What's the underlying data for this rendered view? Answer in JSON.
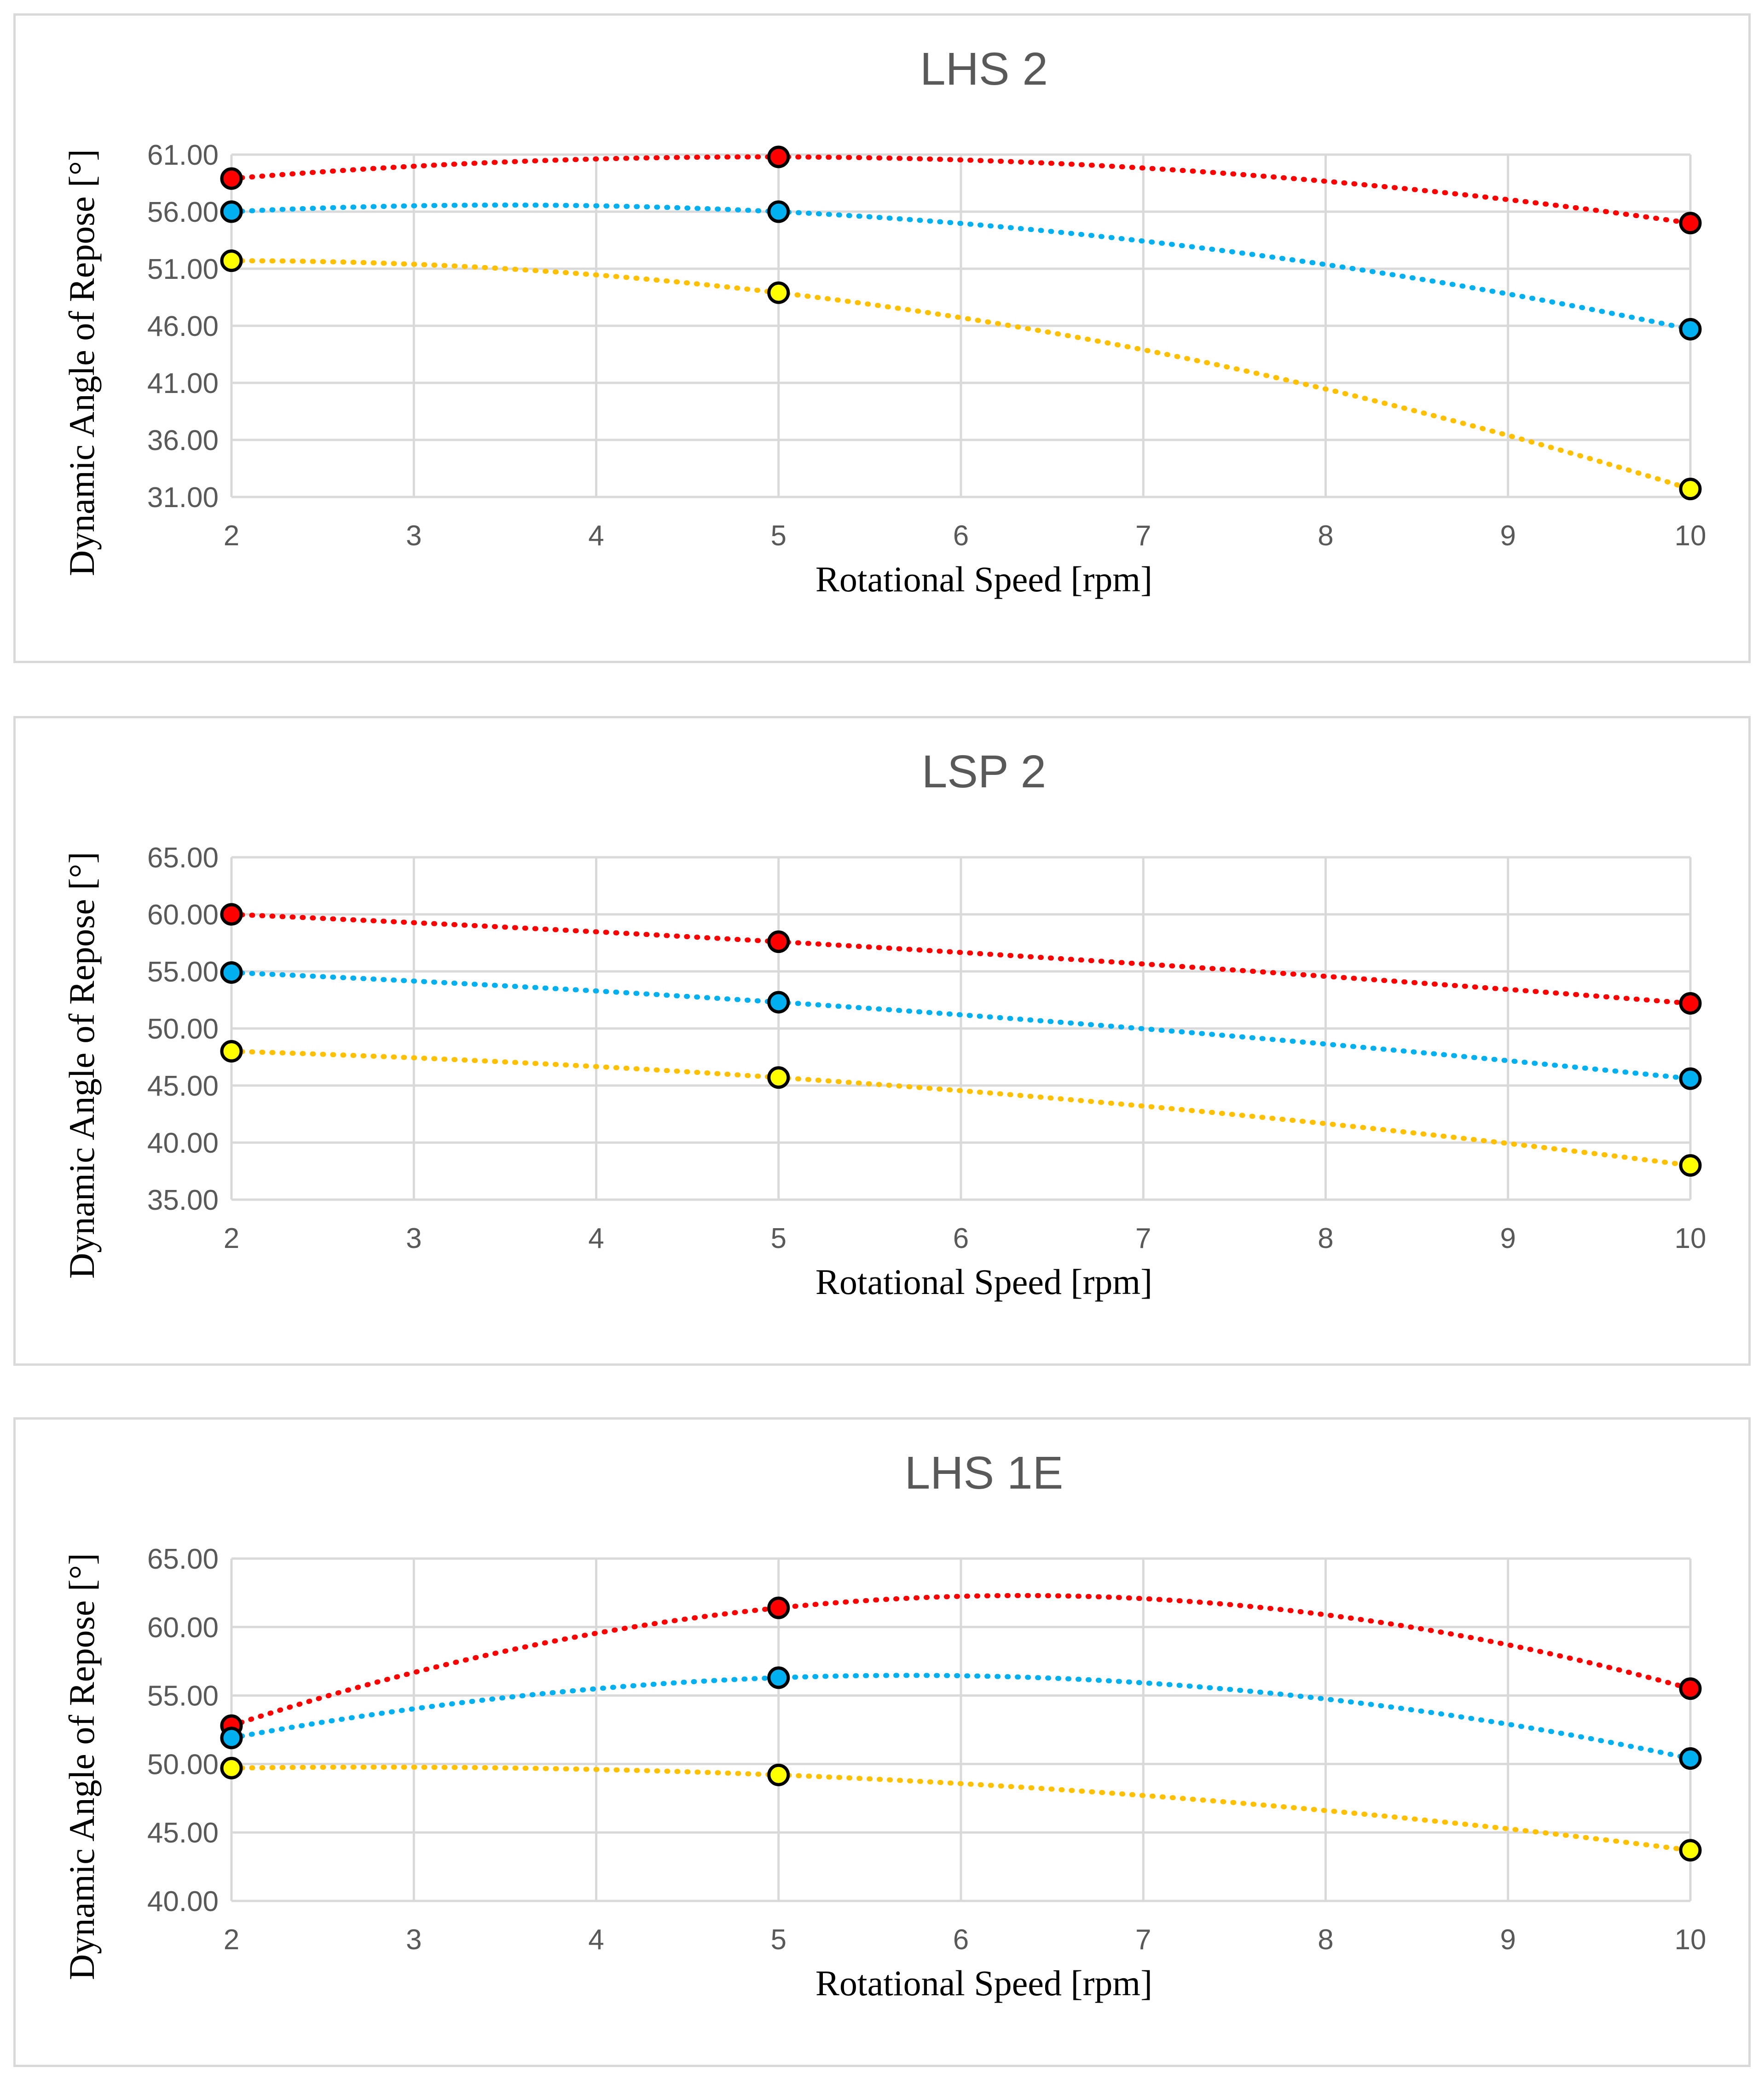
{
  "chart_data": [
    {
      "type": "line",
      "title": "LHS 2",
      "xlabel": "Rotational Speed [rpm]",
      "ylabel": "Dynamic Angle of Repose [°]",
      "xlim": [
        2,
        10
      ],
      "xticks": [
        2,
        3,
        4,
        5,
        6,
        7,
        8,
        9,
        10
      ],
      "ylim": [
        31,
        61
      ],
      "yticks": [
        "31.00",
        "36.00",
        "41.00",
        "46.00",
        "51.00",
        "56.00",
        "61.00"
      ],
      "x": [
        2,
        5,
        10
      ],
      "trendline": "polynomial order 2, dotted",
      "series": [
        {
          "name": "red",
          "color": "#ff0000",
          "values": [
            58.9,
            60.8,
            55.0
          ]
        },
        {
          "name": "blue",
          "color": "#00b0f0",
          "values": [
            56.0,
            56.0,
            45.7
          ]
        },
        {
          "name": "yellow",
          "color": "#ffc000",
          "marker_color": "#ffff00",
          "values": [
            51.7,
            48.9,
            31.7
          ]
        }
      ]
    },
    {
      "type": "line",
      "title": "LSP 2",
      "xlabel": "Rotational Speed [rpm]",
      "ylabel": "Dynamic Angle of Repose [°]",
      "xlim": [
        2,
        10
      ],
      "xticks": [
        2,
        3,
        4,
        5,
        6,
        7,
        8,
        9,
        10
      ],
      "ylim": [
        35,
        65
      ],
      "yticks": [
        "35.00",
        "40.00",
        "45.00",
        "50.00",
        "55.00",
        "60.00",
        "65.00"
      ],
      "x": [
        2,
        5,
        10
      ],
      "trendline": "polynomial order 2, dotted",
      "series": [
        {
          "name": "red",
          "color": "#ff0000",
          "values": [
            60.0,
            57.6,
            52.2
          ]
        },
        {
          "name": "blue",
          "color": "#00b0f0",
          "values": [
            54.9,
            52.3,
            45.6
          ]
        },
        {
          "name": "yellow",
          "color": "#ffc000",
          "marker_color": "#ffff00",
          "values": [
            48.0,
            45.7,
            38.0
          ]
        }
      ]
    },
    {
      "type": "line",
      "title": "LHS 1E",
      "xlabel": "Rotational Speed [rpm]",
      "ylabel": "Dynamic Angle of Repose [°]",
      "xlim": [
        2,
        10
      ],
      "xticks": [
        2,
        3,
        4,
        5,
        6,
        7,
        8,
        9,
        10
      ],
      "ylim": [
        40,
        65
      ],
      "yticks": [
        "40.00",
        "45.00",
        "50.00",
        "55.00",
        "60.00",
        "65.00"
      ],
      "x": [
        2,
        5,
        10
      ],
      "trendline": "polynomial order 2, dotted",
      "series": [
        {
          "name": "red",
          "color": "#ff0000",
          "values": [
            52.8,
            61.4,
            55.5
          ]
        },
        {
          "name": "blue",
          "color": "#00b0f0",
          "values": [
            51.9,
            56.3,
            50.4
          ]
        },
        {
          "name": "yellow",
          "color": "#ffc000",
          "marker_color": "#ffff00",
          "values": [
            49.7,
            49.2,
            43.7
          ]
        }
      ]
    }
  ]
}
